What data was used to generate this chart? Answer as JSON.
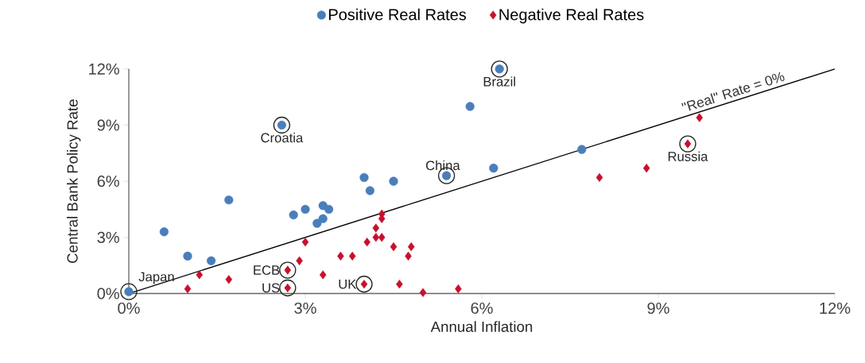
{
  "chart_data": {
    "type": "scatter",
    "xlabel": "Annual Inflation",
    "ylabel": "Central Bank Policy Rate",
    "xlim": [
      0,
      12
    ],
    "ylim": [
      0,
      12
    ],
    "xticks": [
      {
        "value": 0,
        "label": "0%"
      },
      {
        "value": 3,
        "label": "3%"
      },
      {
        "value": 6,
        "label": "6%"
      },
      {
        "value": 9,
        "label": "9%"
      },
      {
        "value": 12,
        "label": "12%"
      }
    ],
    "yticks": [
      {
        "value": 0,
        "label": "0%"
      },
      {
        "value": 3,
        "label": "3%"
      },
      {
        "value": 6,
        "label": "6%"
      },
      {
        "value": 9,
        "label": "9%"
      },
      {
        "value": 12,
        "label": "12%"
      }
    ],
    "grid": false,
    "legend": "top",
    "series": [
      {
        "name": "Positive Real Rates",
        "color": "#4a7ebb",
        "marker": "circle",
        "x": [
          0,
          0.6,
          1.0,
          1.4,
          1.7,
          2.8,
          3.0,
          3.3,
          3.4,
          3.3,
          3.2,
          2.6,
          4.0,
          4.1,
          4.5,
          5.4,
          5.8,
          6.3,
          6.2,
          7.7
        ],
        "values": [
          0.1,
          3.3,
          2.0,
          1.75,
          5.0,
          4.2,
          4.5,
          4.7,
          4.5,
          4.0,
          3.75,
          9.0,
          6.2,
          5.5,
          6.0,
          6.3,
          10.0,
          12.0,
          6.7,
          7.7
        ]
      },
      {
        "name": "Negative Real Rates",
        "color": "#c8102e",
        "marker": "diamond",
        "x": [
          1.0,
          1.2,
          1.7,
          2.7,
          2.7,
          2.9,
          3.0,
          3.3,
          3.6,
          3.8,
          4.0,
          4.05,
          4.2,
          4.2,
          4.3,
          4.3,
          4.3,
          4.5,
          4.6,
          4.8,
          4.75,
          5.0,
          5.6,
          8.0,
          8.8,
          9.5,
          9.7
        ],
        "values": [
          0.25,
          1.0,
          0.75,
          1.25,
          0.3,
          1.75,
          2.75,
          1.0,
          2.0,
          2.0,
          0.5,
          2.75,
          3.5,
          3.0,
          3.0,
          4.0,
          4.25,
          2.5,
          0.5,
          2.5,
          2.0,
          0.05,
          0.25,
          6.2,
          6.7,
          8.0,
          9.4
        ]
      },
      {
        "name": "\"Real\" Rate = 0%",
        "type": "line",
        "color": "#000000",
        "marker": "none",
        "line_style": "solid",
        "x": [
          0,
          12
        ],
        "values": [
          0,
          12
        ]
      }
    ],
    "annotations": [
      {
        "text": "Brazil",
        "x": 6.3,
        "y": 12.0
      },
      {
        "text": "Croatia",
        "x": 2.6,
        "y": 9.0
      },
      {
        "text": "China",
        "x": 5.4,
        "y": 6.3
      },
      {
        "text": "Russia",
        "x": 9.5,
        "y": 8.0
      },
      {
        "text": "Japan",
        "x": 0,
        "y": 0.1
      },
      {
        "text": "ECB",
        "x": 2.7,
        "y": 1.25
      },
      {
        "text": "US",
        "x": 2.7,
        "y": 0.3
      },
      {
        "text": "UK",
        "x": 4.0,
        "y": 0.5
      }
    ]
  }
}
